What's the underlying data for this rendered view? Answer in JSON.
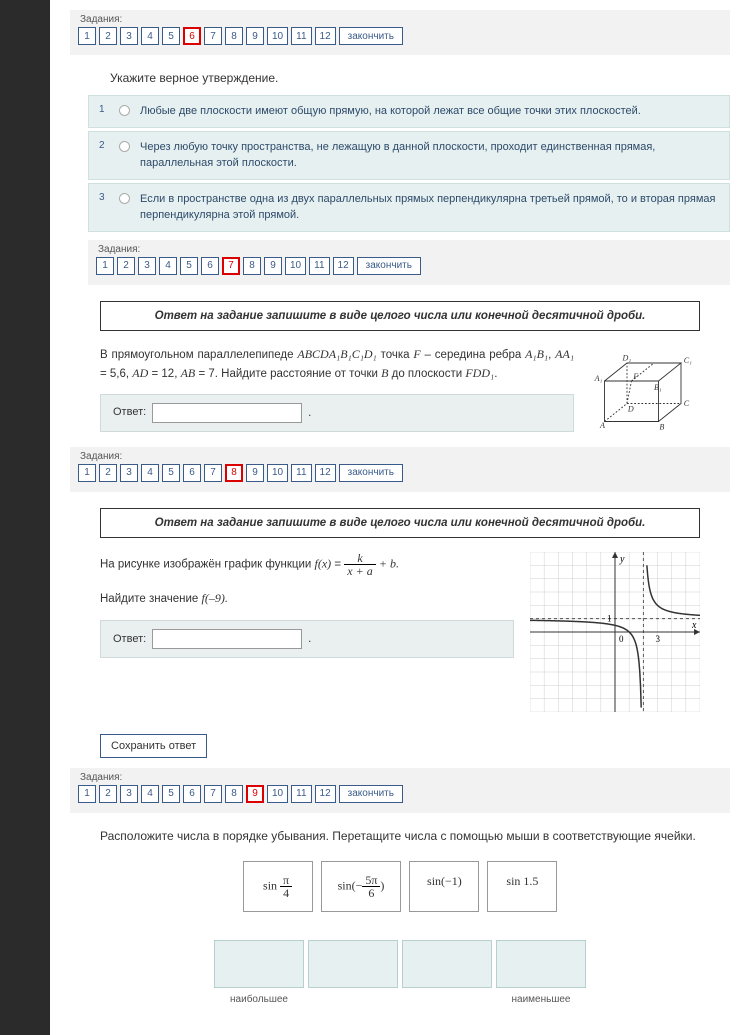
{
  "nav": {
    "label": "Задания:",
    "items": [
      "1",
      "2",
      "3",
      "4",
      "5",
      "6",
      "7",
      "8",
      "9",
      "10",
      "11",
      "12"
    ],
    "finish": "закончить"
  },
  "q6": {
    "current": "6",
    "instr": "Укажите верное утверждение.",
    "opts": [
      {
        "n": "1",
        "t": "Любые две плоскости имеют общую прямую, на которой лежат все общие точки этих плоскостей."
      },
      {
        "n": "2",
        "t": "Через любую точку пространства, не лежащую в данной плоскости, проходит единственная прямая, параллельная этой плоскости."
      },
      {
        "n": "3",
        "t": "Если в пространстве одна из двух параллельных прямых перпендикулярна третьей прямой, то и вторая прямая перпендикулярна этой прямой."
      }
    ]
  },
  "q7": {
    "current": "7"
  },
  "q8": {
    "current": "8",
    "title": "Ответ на задание запишите в виде целого числа или конечной десятичной дроби.",
    "p1": "В прямоугольном параллелепипеде ",
    "p1m": "ABCDA₁B₁C₁D₁",
    "p1b": " точка ",
    "p1f": "F",
    "p1c": " – середина ребра ",
    "p1e": "A₁B₁",
    "p1comma": ",",
    "p2": "AA₁",
    "p2a": " = 5,6, ",
    "p2b": "AD",
    "p2c": " = 12, ",
    "p2d": "AB",
    "p2e": " = 7. Найдите расстояние от точки ",
    "p2f": "B",
    "p2g": " до плоскости ",
    "p2h": "FDD₁",
    "p2i": ".",
    "answer_label": "Ответ:",
    "cube": {
      "labels": {
        "A": "A",
        "B": "B",
        "C": "C",
        "D": "D",
        "A1": "A₁",
        "B1": "B₁",
        "C1": "C₁",
        "D1": "D₁",
        "F": "F"
      },
      "stroke": "#333"
    }
  },
  "q9": {
    "current": "9",
    "title": "Ответ на задание запишите в виде целого числа или конечной десятичной дроби.",
    "line1a": "На рисунке изображён график функции  ",
    "fx": "f(x)",
    "eq": " = ",
    "k": "k",
    "xa": "x + a",
    "plus_b": " + b.",
    "line2a": "Найдите значение ",
    "line2b": "f(–9).",
    "answer_label": "Ответ:",
    "save": "Сохранить ответ",
    "graph": {
      "grid_color": "#cfcfcf",
      "axis_color": "#333",
      "curve_color": "#333",
      "asymptote_x": 2,
      "asymptote_y": 1,
      "point_x": 3,
      "xlim": [
        -6,
        6
      ],
      "ylim": [
        -6,
        6
      ]
    }
  },
  "q_drag": {
    "instr": "Расположите числа в порядке убывания. Перетащите числа с помощью мыши в соответствующие ячейки.",
    "items": [
      "sin π/4",
      "sin(−5π/6)",
      "sin(−1)",
      "sin 1.5"
    ],
    "label_max": "наибольшее",
    "label_min": "наименьшее"
  },
  "colors": {
    "accent": "#3a5a8a",
    "opt_bg": "#e6f0f0",
    "opt_border": "#cfe0e0",
    "nav_bg": "#f2f2f2"
  }
}
